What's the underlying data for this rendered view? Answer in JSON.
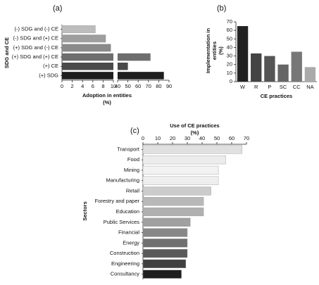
{
  "chart_data": [
    {
      "type": "hbar",
      "panel_label": "(a)",
      "categories": [
        "(-) SDG and (-) CE",
        "(-) SDG and (+) CE",
        "(+) SDG and (-) CE",
        "(+) SDG and (+) CE",
        "(+) CE",
        "(+) SDG"
      ],
      "values": [
        6.5,
        8.5,
        9.5,
        72,
        50,
        85
      ],
      "colors": [
        "#bdbdbd",
        "#9e9e9e",
        "#8a8a8a",
        "#6e6e6e",
        "#4a4a4a",
        "#1e1e1e"
      ],
      "xlabel": [
        "Adoption in entities",
        "(%)"
      ],
      "ylabel": "SDG and CE",
      "xlim": [
        0,
        90
      ],
      "xbreak": [
        10,
        40
      ],
      "xticks": [
        0,
        2,
        4,
        6,
        8,
        10,
        40,
        50,
        60,
        70,
        80,
        90
      ],
      "xaxis_position": "bottom"
    },
    {
      "type": "bar",
      "panel_label": "(b)",
      "categories": [
        "W",
        "R",
        "P",
        "SC",
        "CC",
        "NA"
      ],
      "values": [
        65,
        33,
        30,
        20,
        35,
        17
      ],
      "colors": [
        "#222222",
        "#444444",
        "#555555",
        "#666666",
        "#777777",
        "#aaaaaa"
      ],
      "xlabel": [
        "CE practices"
      ],
      "ylabel": [
        "Implementation in",
        "entities",
        "(%)"
      ],
      "ylim": [
        0,
        70
      ],
      "yticks": [
        0,
        10,
        20,
        30,
        40,
        50,
        60,
        70
      ]
    },
    {
      "type": "hbar",
      "panel_label": "(c)",
      "categories": [
        "Transport",
        "Food",
        "Mining",
        "Manufacturing",
        "Retail",
        "Forestry and paper",
        "Education",
        "Public Services",
        "Financial",
        "Energy",
        "Construction",
        "Engineering",
        "Consultancy"
      ],
      "values": [
        67,
        56,
        51,
        51,
        46,
        41,
        41,
        32,
        30,
        30,
        30,
        29,
        26
      ],
      "colors": [
        "#e0e0e0",
        "#ececec",
        "#f2f2f2",
        "#eeeeee",
        "#cccccc",
        "#b8b8b8",
        "#b0b0b0",
        "#a0a0a0",
        "#888888",
        "#707070",
        "#5a5a5a",
        "#404040",
        "#1e1e1e"
      ],
      "xlabel": [
        "Use of CE practices",
        "(%)"
      ],
      "ylabel": "Sectors",
      "xlim": [
        0,
        70
      ],
      "xticks": [
        0,
        10,
        20,
        30,
        40,
        50,
        60,
        70
      ],
      "xaxis_position": "top"
    }
  ]
}
